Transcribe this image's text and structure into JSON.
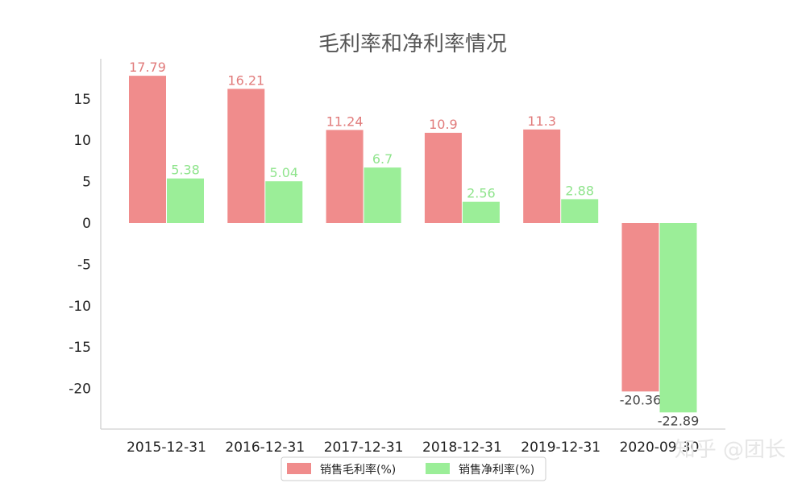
{
  "chart_data": {
    "type": "bar",
    "title": "毛利率和净利率情况",
    "categories": [
      "2015-12-31",
      "2016-12-31",
      "2017-12-31",
      "2018-12-31",
      "2019-12-31",
      "2020-09-30"
    ],
    "series": [
      {
        "name": "销售毛利率(%)",
        "values": [
          17.79,
          16.21,
          11.24,
          10.9,
          11.3,
          -20.36
        ],
        "color": "#f08c8c"
      },
      {
        "name": "销售净利率(%)",
        "values": [
          5.38,
          5.04,
          6.7,
          2.56,
          2.88,
          -22.89
        ],
        "color": "#9bee98"
      }
    ],
    "label_colors": [
      "#e17b7b",
      "#8fe48c"
    ],
    "negative_label_color": "#444444",
    "ylim": [
      -25,
      19
    ],
    "yticks": [
      15,
      10,
      5,
      0,
      -5,
      -10,
      -15,
      -20
    ],
    "xlabel": "",
    "ylabel": "",
    "grid": false,
    "legend_position": "bottom-center"
  },
  "watermark": "知乎 @团长"
}
